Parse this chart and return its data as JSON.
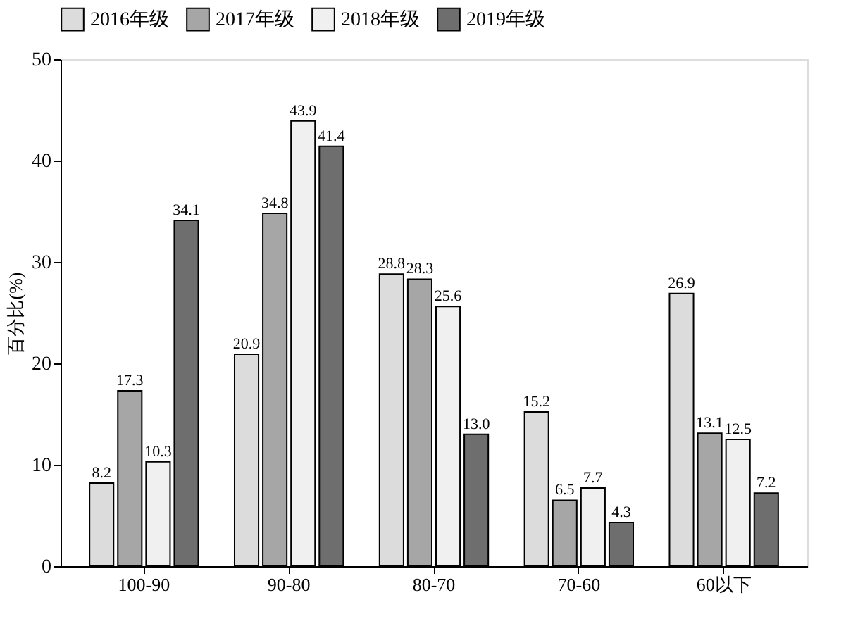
{
  "chart_data": {
    "type": "bar",
    "ylabel": "百分比(%)",
    "categories": [
      "100-90",
      "90-80",
      "80-70",
      "70-60",
      "60以下"
    ],
    "series": [
      {
        "name": "2016年级",
        "color": "#dcdcdc",
        "values": [
          8.2,
          20.9,
          28.8,
          15.2,
          26.9
        ],
        "value_labels": [
          "8.2",
          "20.9",
          "28.8",
          "15.2",
          "26.9"
        ]
      },
      {
        "name": "2017年级",
        "color": "#a6a6a6",
        "values": [
          17.3,
          34.8,
          28.3,
          6.5,
          13.1
        ],
        "value_labels": [
          "17.3",
          "34.8",
          "28.3",
          "6.5",
          "13.1"
        ]
      },
      {
        "name": "2018年级",
        "color": "#f0f0f0",
        "values": [
          10.3,
          43.9,
          25.6,
          7.7,
          12.5
        ],
        "value_labels": [
          "10.3",
          "43.9",
          "25.6",
          "7.7",
          "12.5"
        ]
      },
      {
        "name": "2019年级",
        "color": "#6e6e6e",
        "values": [
          34.1,
          41.4,
          13,
          4.3,
          7.2
        ],
        "value_labels": [
          "34.1",
          "41.4",
          "13.0",
          "4.3",
          "7.2"
        ]
      }
    ],
    "ylim": [
      0,
      50
    ],
    "yticks": [
      0,
      10,
      20,
      30,
      40,
      50
    ],
    "grid": false,
    "legend": "top"
  }
}
